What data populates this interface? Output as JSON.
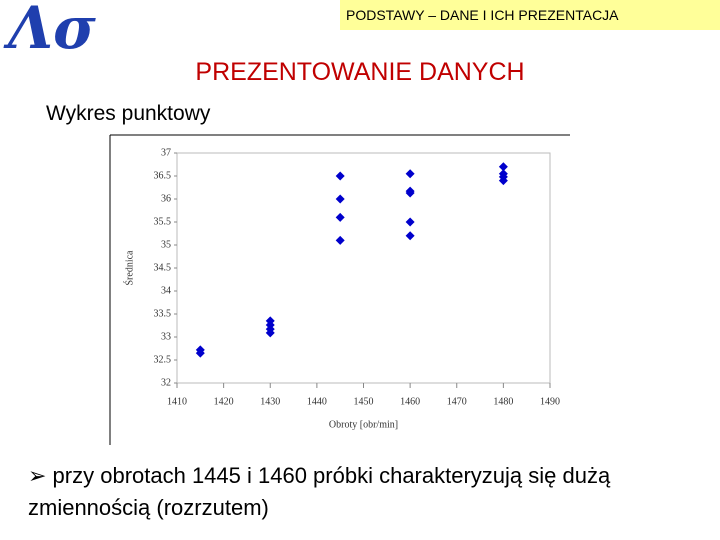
{
  "header": "PODSTAWY – DANE I ICH PREZENTACJA",
  "logo": "Λσ",
  "title": "PREZENTOWANIE DANYCH",
  "subtitle": "Wykres punktowy",
  "bullet": "przy obrotach 1445 i 1460 próbki charakteryzują się dużą zmiennością (rozrzutem)",
  "chart_data": {
    "type": "scatter",
    "x_label": "Obroty [obr/min]",
    "y_label": "Średnica",
    "x": [
      1415,
      1415,
      1430,
      1430,
      1430,
      1430,
      1445,
      1445,
      1445,
      1445,
      1460,
      1460,
      1460,
      1460,
      1460,
      1480,
      1480,
      1480,
      1480
    ],
    "values": [
      32.72,
      32.65,
      33.35,
      33.26,
      33.17,
      33.09,
      36.5,
      36.0,
      35.6,
      35.1,
      36.55,
      36.17,
      36.13,
      35.5,
      35.2,
      36.7,
      36.55,
      36.48,
      36.4
    ],
    "color": "#0000cc",
    "xlim": [
      1410,
      1490
    ],
    "xticks": [
      1410,
      1420,
      1430,
      1440,
      1450,
      1460,
      1470,
      1480,
      1490
    ],
    "ylim": [
      32,
      37
    ],
    "yticks": [
      32,
      32.5,
      33,
      33.5,
      34,
      34.5,
      35,
      35.5,
      36,
      36.5,
      37
    ]
  }
}
